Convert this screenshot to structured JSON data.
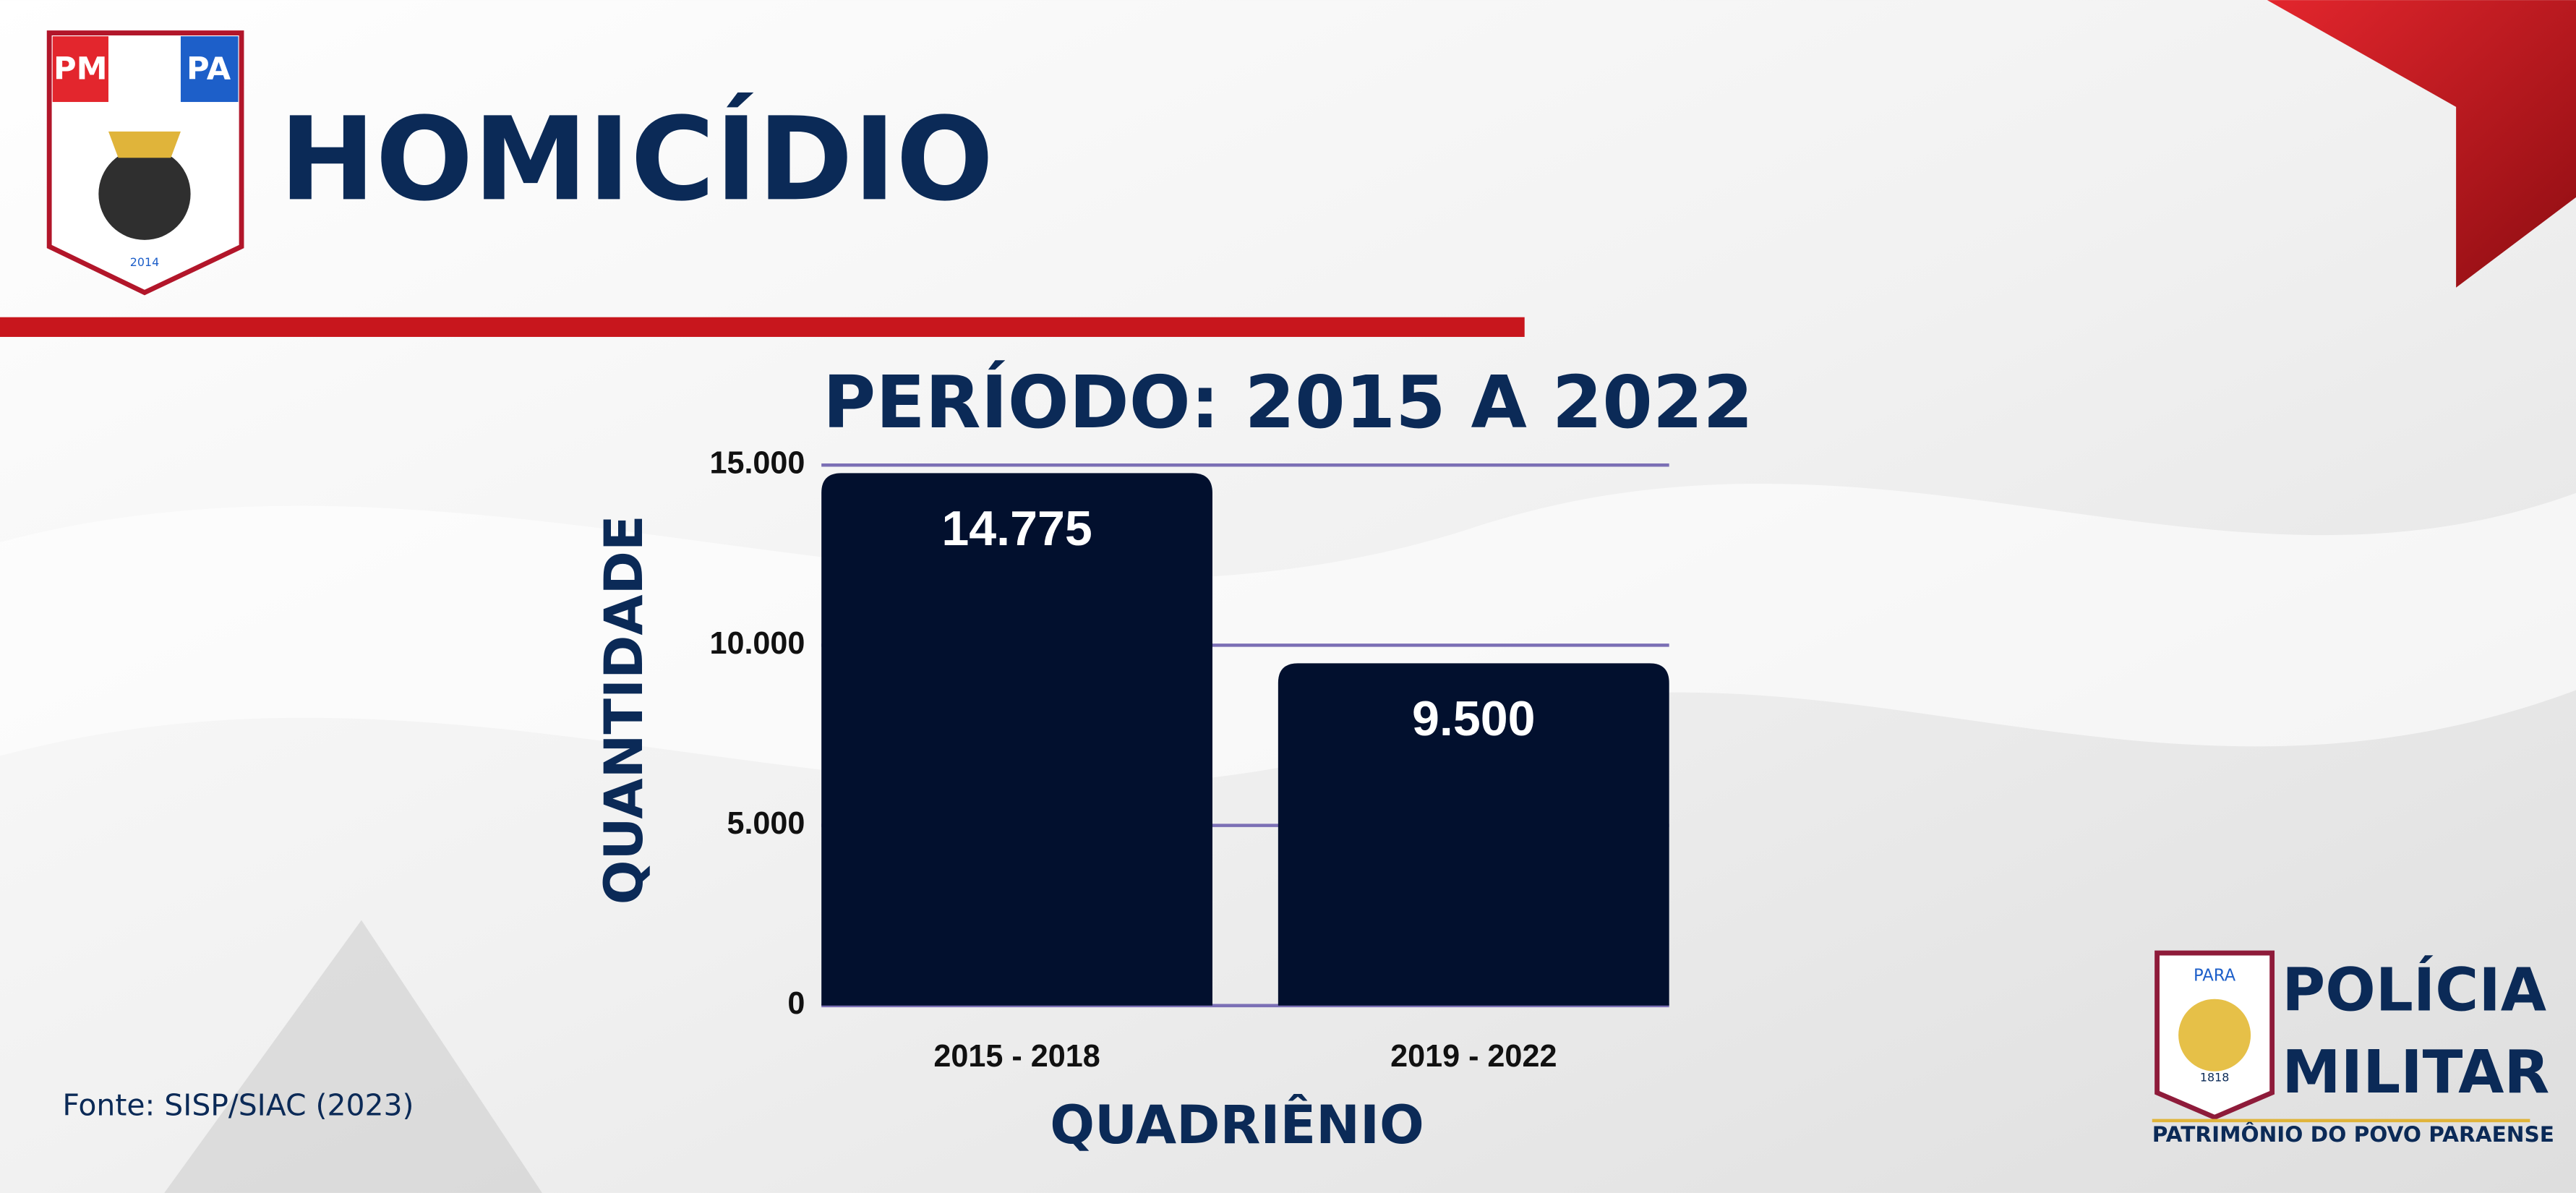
{
  "header": {
    "title": "HOMICÍDIO",
    "badge_left": "PM",
    "badge_right": "PA",
    "badge_year": "2014"
  },
  "footer": {
    "source": "Fonte: SISP/SIAC (2023)",
    "logo_line1": "POLÍCIA",
    "logo_line2": "MILITAR",
    "logo_tagline": "PATRIMÔNIO DO POVO PARAENSE",
    "emblem_top": "PARA",
    "emblem_year": "1818"
  },
  "chart_data": {
    "type": "bar",
    "title": "PERÍODO: 2015 A 2022",
    "x_label": "QUADRIÊNIO",
    "y_label": "QUANTIDADE",
    "categories": [
      "2015 - 2018",
      "2019 - 2022"
    ],
    "values": [
      14775,
      9500
    ],
    "value_labels": [
      "14.775",
      "9.500"
    ],
    "color": "#02102e",
    "grid_color": "#7b6fb5",
    "ylim": [
      0,
      15000
    ],
    "yticks": [
      0,
      {
        "value": 5000,
        "label": "5.000"
      },
      {
        "value": 10000,
        "label": "10.000"
      },
      {
        "value": 15000,
        "label": "15.000"
      }
    ],
    "grid": true
  }
}
